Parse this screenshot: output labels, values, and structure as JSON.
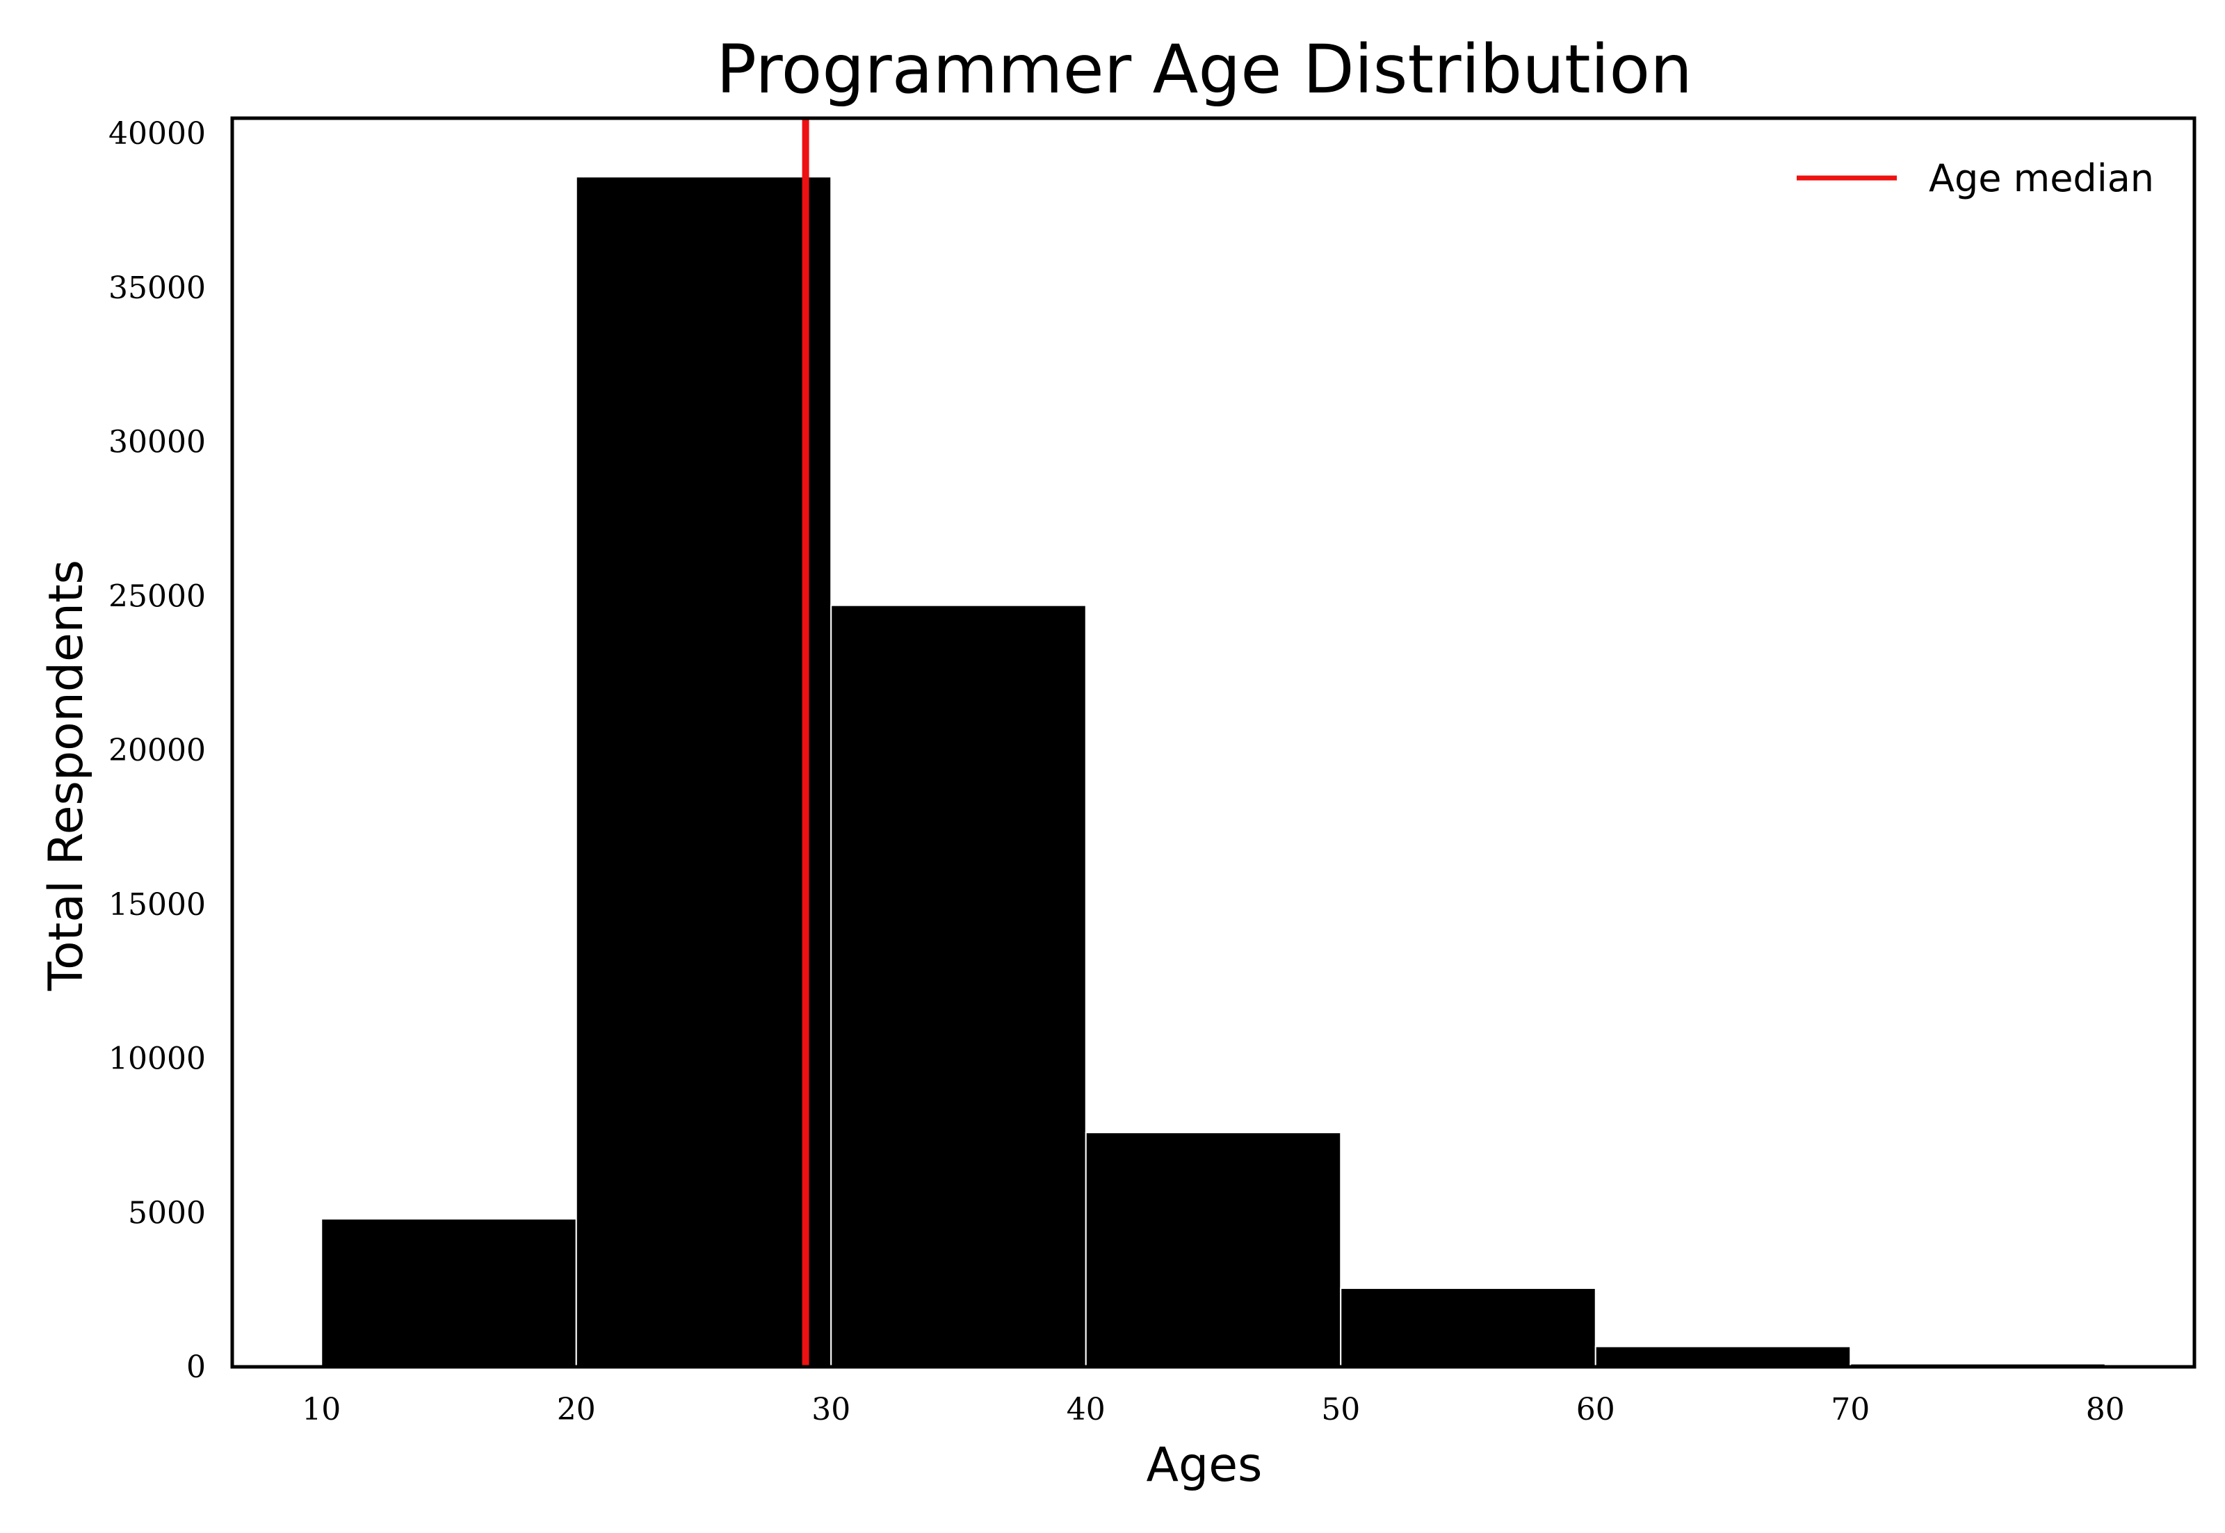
{
  "chart_data": {
    "type": "bar",
    "title": "Programmer Age Distribution",
    "xlabel": "Ages",
    "ylabel": "Total Respondents",
    "xlim": [
      6.5,
      83.5
    ],
    "ylim": [
      0,
      40500
    ],
    "xticks": [
      10,
      20,
      30,
      40,
      50,
      60,
      70,
      80
    ],
    "xtick_labels": [
      "10",
      "20",
      "30",
      "40",
      "50",
      "60",
      "70",
      "80"
    ],
    "yticks": [
      0,
      5000,
      10000,
      15000,
      20000,
      25000,
      30000,
      35000,
      40000
    ],
    "ytick_labels": [
      "0",
      "5000",
      "10000",
      "15000",
      "20000",
      "25000",
      "30000",
      "35000",
      "40000"
    ],
    "bins": [
      {
        "start": 10,
        "end": 20,
        "value": 4800
      },
      {
        "start": 20,
        "end": 30,
        "value": 38600
      },
      {
        "start": 30,
        "end": 40,
        "value": 24700
      },
      {
        "start": 40,
        "end": 50,
        "value": 7600
      },
      {
        "start": 50,
        "end": 60,
        "value": 2550
      },
      {
        "start": 60,
        "end": 70,
        "value": 660
      },
      {
        "start": 70,
        "end": 80,
        "value": 100
      }
    ],
    "median_line": {
      "x": 29,
      "color": "#ee1111",
      "name": "Age median"
    },
    "bar_color": "#000000",
    "bar_edge_color": "#ffffff",
    "grid": false,
    "legend": {
      "position": "top-right",
      "entries": [
        "Age median"
      ]
    }
  }
}
